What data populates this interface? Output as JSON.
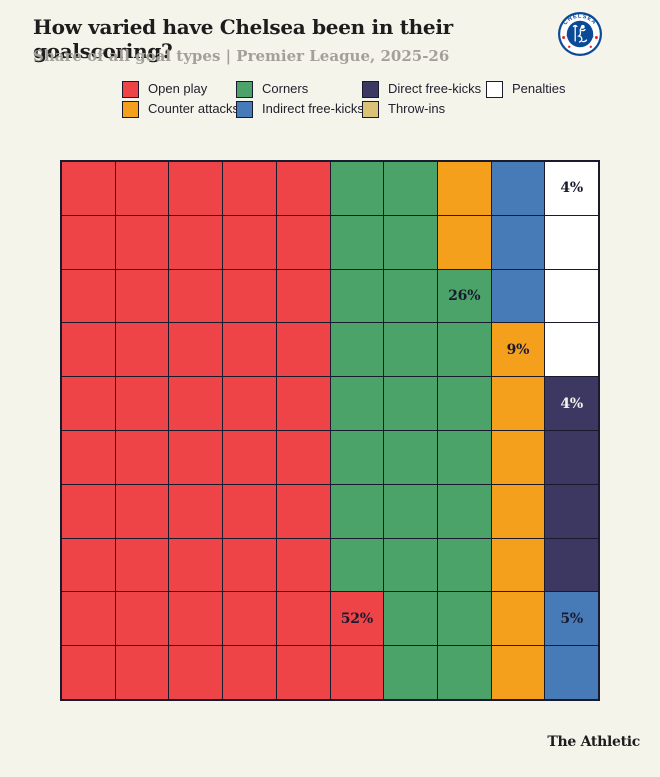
{
  "header": {
    "title": "How varied have Chelsea been in their goalscoring?",
    "subtitle": "Share of all goal types | Premier League, 2025-26"
  },
  "badge": {
    "club": "Chelsea",
    "text_top": "CHELSEA",
    "text_bottom": "FOOTBALL CLUB"
  },
  "legend": {
    "columns": [
      [
        {
          "label": "Open play",
          "key": "R"
        },
        {
          "label": "Counter attacks",
          "key": "O"
        }
      ],
      [
        {
          "label": "Corners",
          "key": "G"
        },
        {
          "label": "Indirect free-kicks",
          "key": "B"
        }
      ],
      [
        {
          "label": "Direct free-kicks",
          "key": "N"
        },
        {
          "label": "Throw-ins",
          "key": "T"
        }
      ],
      [
        {
          "label": "Penalties",
          "key": "W"
        }
      ]
    ]
  },
  "colors": {
    "R": "#EE4448",
    "O": "#F4A01D",
    "G": "#4CA369",
    "B": "#477BB8",
    "N": "#3C3862",
    "T": "#DBC277",
    "W": "#FFFFFF",
    "grid_line": "#1A1A2E",
    "background": "#F5F4EB",
    "crest_blue": "#0B4A97",
    "crest_red": "#E3262D"
  },
  "chart_data": {
    "type": "waffle",
    "title": "How varied have Chelsea been in their goalscoring?",
    "subtitle": "Share of all goal types | Premier League, 2025-26",
    "grid_size": "10x10",
    "unit": "percent of all goals (1 square = 1%)",
    "categories": [
      "Open play",
      "Corners",
      "Counter attacks",
      "Indirect free-kicks",
      "Direct free-kicks",
      "Penalties",
      "Throw-ins"
    ],
    "values": [
      52,
      26,
      9,
      5,
      4,
      4,
      0
    ],
    "rows": [
      "RRRRRGGOBW",
      "RRRRRGGOBW",
      "RRRRRGGGBW",
      "RRRRRGGGOW",
      "RRRRRGGGON",
      "RRRRRGGGON",
      "RRRRRGGGON",
      "RRRRRGGGON",
      "RRRRRRGGOB",
      "RRRRRRGGOB"
    ],
    "cell_labels": [
      {
        "row": 0,
        "col": 9,
        "text": "4%",
        "tone": "dark"
      },
      {
        "row": 2,
        "col": 7,
        "text": "26%",
        "tone": "dark"
      },
      {
        "row": 3,
        "col": 8,
        "text": "9%",
        "tone": "dark"
      },
      {
        "row": 4,
        "col": 9,
        "text": "4%",
        "tone": "light"
      },
      {
        "row": 8,
        "col": 5,
        "text": "52%",
        "tone": "dark"
      },
      {
        "row": 8,
        "col": 9,
        "text": "5%",
        "tone": "dark"
      }
    ]
  },
  "footer": {
    "brand": "The Athletic"
  }
}
